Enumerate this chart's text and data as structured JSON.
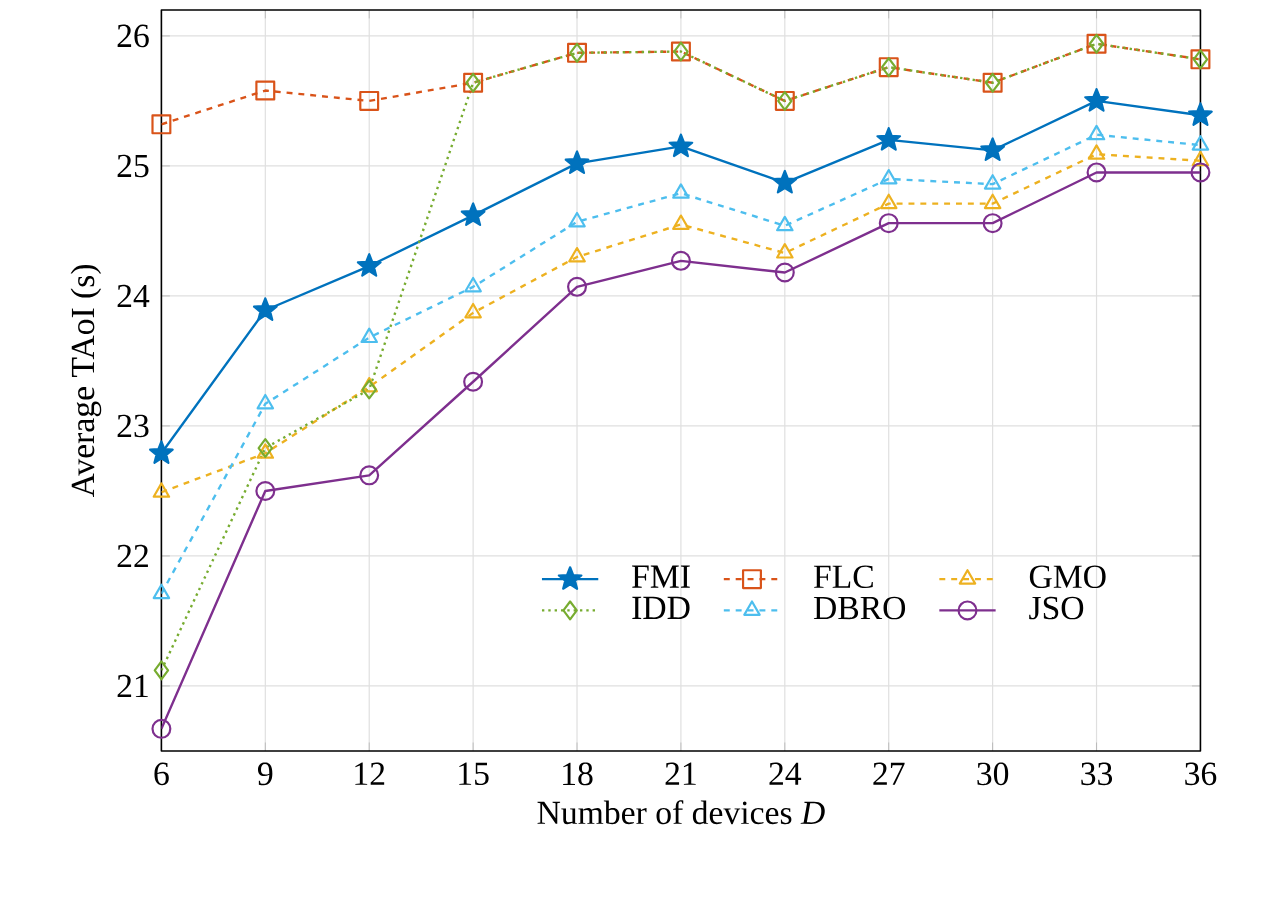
{
  "chart_data": {
    "type": "line",
    "xlabel": "Number of devices *D*",
    "ylabel": "Average TAoI (s)",
    "x": [
      6,
      9,
      12,
      15,
      18,
      21,
      24,
      27,
      30,
      33,
      36
    ],
    "xlim": [
      6,
      36
    ],
    "xticks": [
      6,
      9,
      12,
      15,
      18,
      21,
      24,
      27,
      30,
      33,
      36
    ],
    "ylim": [
      20.5,
      26.2
    ],
    "yticks": [
      21,
      22,
      23,
      24,
      25,
      26
    ],
    "grid": true,
    "legend": "bottom right",
    "series": [
      {
        "name": "FMI",
        "color": "#0072bd",
        "marker": "star",
        "line_style": "solid",
        "values": [
          22.79,
          23.89,
          24.23,
          24.62,
          25.02,
          25.15,
          24.87,
          25.2,
          25.12,
          25.5,
          25.39
        ]
      },
      {
        "name": "FLC",
        "color": "#d95319",
        "marker": "square",
        "line_style": "dashed",
        "values": [
          25.32,
          25.58,
          25.5,
          25.64,
          25.87,
          25.88,
          25.5,
          25.76,
          25.64,
          25.94,
          25.82
        ]
      },
      {
        "name": "GMO",
        "color": "#edb120",
        "marker": "triangle",
        "line_style": "dashed",
        "values": [
          22.49,
          22.79,
          23.3,
          23.87,
          24.3,
          24.55,
          24.33,
          24.71,
          24.71,
          25.09,
          25.04
        ]
      },
      {
        "name": "IDD",
        "color": "#77ac30",
        "marker": "diamond",
        "line_style": "dotted",
        "values": [
          21.12,
          22.83,
          23.28,
          25.64,
          25.87,
          25.88,
          25.5,
          25.76,
          25.64,
          25.94,
          25.82
        ]
      },
      {
        "name": "DBRO",
        "color": "#4dbeee",
        "marker": "triangle",
        "line_style": "dashed",
        "values": [
          21.71,
          23.17,
          23.68,
          24.07,
          24.57,
          24.79,
          24.54,
          24.9,
          24.86,
          25.24,
          25.16
        ]
      },
      {
        "name": "JSO",
        "color": "#7e2f8e",
        "marker": "circle",
        "line_style": "solid",
        "values": [
          20.67,
          22.5,
          22.62,
          23.34,
          24.07,
          24.27,
          24.18,
          24.56,
          24.56,
          24.95,
          24.95
        ]
      }
    ]
  }
}
